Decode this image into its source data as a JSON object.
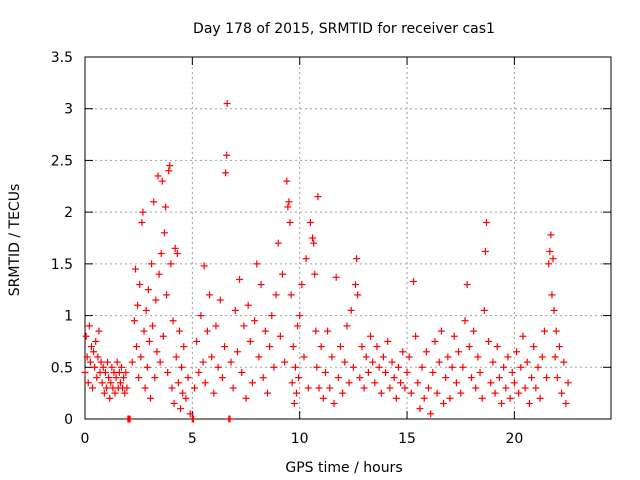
{
  "chart_data": {
    "type": "scatter",
    "title": "Day 178 of 2015, SRMTID for receiver cas1",
    "xlabel": "GPS time / hours",
    "ylabel": "SRMTID / TECUs",
    "xlim": [
      0,
      24.5
    ],
    "ylim": [
      0,
      3.5
    ],
    "grid": true,
    "legend": "none",
    "marker": "+",
    "marker_color": "#ff0000",
    "x_ticks": [
      {
        "value": 0,
        "label": "0"
      },
      {
        "value": 5,
        "label": "5"
      },
      {
        "value": 10,
        "label": "10"
      },
      {
        "value": 15,
        "label": "15"
      },
      {
        "value": 20,
        "label": "20"
      }
    ],
    "y_ticks": [
      {
        "value": 0,
        "label": "0"
      },
      {
        "value": 0.5,
        "label": "0.5"
      },
      {
        "value": 1,
        "label": "1"
      },
      {
        "value": 1.5,
        "label": "1.5"
      },
      {
        "value": 2,
        "label": "2"
      },
      {
        "value": 2.5,
        "label": "2.5"
      },
      {
        "value": 3,
        "label": "3"
      },
      {
        "value": 3.5,
        "label": "3.5"
      }
    ],
    "series": [
      {
        "name": "SRMTID",
        "points": [
          [
            0.0,
            0.45
          ],
          [
            0.05,
            0.8
          ],
          [
            0.1,
            0.6
          ],
          [
            0.15,
            0.35
          ],
          [
            0.2,
            0.9
          ],
          [
            0.25,
            0.55
          ],
          [
            0.3,
            0.7
          ],
          [
            0.35,
            0.3
          ],
          [
            0.4,
            0.65
          ],
          [
            0.45,
            0.5
          ],
          [
            0.5,
            0.75
          ],
          [
            0.55,
            0.4
          ],
          [
            0.6,
            0.6
          ],
          [
            0.65,
            0.85
          ],
          [
            0.7,
            0.45
          ],
          [
            0.75,
            0.55
          ],
          [
            0.8,
            0.35
          ],
          [
            0.85,
            0.5
          ],
          [
            0.9,
            0.25
          ],
          [
            0.95,
            0.45
          ],
          [
            1.0,
            0.3
          ],
          [
            1.05,
            0.55
          ],
          [
            1.1,
            0.4
          ],
          [
            1.15,
            0.2
          ],
          [
            1.2,
            0.35
          ],
          [
            1.25,
            0.5
          ],
          [
            1.3,
            0.3
          ],
          [
            1.35,
            0.45
          ],
          [
            1.4,
            0.25
          ],
          [
            1.45,
            0.4
          ],
          [
            1.5,
            0.55
          ],
          [
            1.55,
            0.3
          ],
          [
            1.6,
            0.45
          ],
          [
            1.65,
            0.35
          ],
          [
            1.7,
            0.5
          ],
          [
            1.75,
            0.3
          ],
          [
            1.8,
            0.4
          ],
          [
            1.85,
            0.25
          ],
          [
            1.9,
            0.45
          ],
          [
            1.95,
            0.3
          ],
          [
            2.0,
            0.0
          ],
          [
            2.05,
            0.0
          ],
          [
            2.1,
            0.0
          ],
          [
            2.2,
            0.55
          ],
          [
            2.3,
            0.95
          ],
          [
            2.35,
            1.45
          ],
          [
            2.4,
            0.7
          ],
          [
            2.45,
            1.1
          ],
          [
            2.5,
            0.4
          ],
          [
            2.55,
            1.3
          ],
          [
            2.6,
            0.6
          ],
          [
            2.65,
            1.9
          ],
          [
            2.7,
            2.0
          ],
          [
            2.75,
            0.85
          ],
          [
            2.8,
            0.3
          ],
          [
            2.85,
            1.05
          ],
          [
            2.9,
            0.5
          ],
          [
            2.95,
            1.25
          ],
          [
            3.0,
            0.75
          ],
          [
            3.05,
            0.2
          ],
          [
            3.1,
            1.5
          ],
          [
            3.15,
            0.9
          ],
          [
            3.2,
            2.1
          ],
          [
            3.25,
            0.4
          ],
          [
            3.3,
            1.15
          ],
          [
            3.35,
            0.65
          ],
          [
            3.4,
            2.35
          ],
          [
            3.45,
            1.4
          ],
          [
            3.5,
            0.55
          ],
          [
            3.55,
            1.6
          ],
          [
            3.6,
            2.3
          ],
          [
            3.65,
            0.8
          ],
          [
            3.7,
            1.8
          ],
          [
            3.75,
            2.05
          ],
          [
            3.8,
            1.2
          ],
          [
            3.85,
            0.45
          ],
          [
            3.9,
            2.4
          ],
          [
            3.95,
            2.45
          ],
          [
            4.0,
            1.5
          ],
          [
            4.05,
            0.3
          ],
          [
            4.1,
            0.95
          ],
          [
            4.15,
            0.15
          ],
          [
            4.2,
            1.65
          ],
          [
            4.25,
            0.6
          ],
          [
            4.3,
            1.6
          ],
          [
            4.35,
            0.35
          ],
          [
            4.4,
            0.85
          ],
          [
            4.45,
            0.1
          ],
          [
            4.5,
            0.5
          ],
          [
            4.55,
            0.25
          ],
          [
            4.6,
            0.7
          ],
          [
            4.7,
            0.2
          ],
          [
            4.8,
            0.4
          ],
          [
            4.9,
            0.05
          ],
          [
            5.0,
            0.0
          ],
          [
            5.05,
            0.0
          ],
          [
            5.1,
            0.3
          ],
          [
            5.2,
            0.75
          ],
          [
            5.3,
            0.45
          ],
          [
            5.4,
            1.0
          ],
          [
            5.5,
            0.55
          ],
          [
            5.55,
            1.48
          ],
          [
            5.6,
            0.35
          ],
          [
            5.7,
            0.85
          ],
          [
            5.8,
            1.2
          ],
          [
            5.9,
            0.6
          ],
          [
            6.0,
            0.25
          ],
          [
            6.1,
            0.9
          ],
          [
            6.2,
            0.5
          ],
          [
            6.3,
            1.15
          ],
          [
            6.4,
            0.4
          ],
          [
            6.5,
            0.7
          ],
          [
            6.55,
            2.38
          ],
          [
            6.6,
            2.55
          ],
          [
            6.62,
            3.05
          ],
          [
            6.7,
            0.0
          ],
          [
            6.75,
            0.0
          ],
          [
            6.8,
            0.55
          ],
          [
            6.9,
            0.3
          ],
          [
            7.0,
            1.05
          ],
          [
            7.1,
            0.65
          ],
          [
            7.2,
            1.35
          ],
          [
            7.3,
            0.45
          ],
          [
            7.4,
            0.9
          ],
          [
            7.5,
            0.2
          ],
          [
            7.6,
            1.1
          ],
          [
            7.7,
            0.75
          ],
          [
            7.8,
            0.35
          ],
          [
            7.9,
            0.95
          ],
          [
            8.0,
            1.5
          ],
          [
            8.1,
            0.6
          ],
          [
            8.2,
            1.3
          ],
          [
            8.3,
            0.4
          ],
          [
            8.4,
            0.85
          ],
          [
            8.5,
            0.25
          ],
          [
            8.6,
            0.7
          ],
          [
            8.7,
            1.0
          ],
          [
            8.8,
            0.5
          ],
          [
            8.9,
            1.2
          ],
          [
            9.0,
            1.7
          ],
          [
            9.1,
            0.8
          ],
          [
            9.2,
            1.4
          ],
          [
            9.3,
            0.55
          ],
          [
            9.4,
            2.3
          ],
          [
            9.45,
            2.05
          ],
          [
            9.5,
            2.1
          ],
          [
            9.55,
            1.9
          ],
          [
            9.6,
            1.2
          ],
          [
            9.65,
            0.35
          ],
          [
            9.7,
            0.7
          ],
          [
            9.75,
            0.15
          ],
          [
            9.8,
            0.5
          ],
          [
            9.85,
            0.25
          ],
          [
            9.9,
            0.9
          ],
          [
            9.95,
            0.4
          ],
          [
            10.0,
            1.0
          ],
          [
            10.1,
            1.3
          ],
          [
            10.2,
            0.6
          ],
          [
            10.3,
            1.55
          ],
          [
            10.4,
            0.3
          ],
          [
            10.5,
            1.9
          ],
          [
            10.6,
            1.75
          ],
          [
            10.65,
            1.7
          ],
          [
            10.7,
            1.4
          ],
          [
            10.75,
            0.85
          ],
          [
            10.8,
            0.5
          ],
          [
            10.85,
            2.15
          ],
          [
            10.9,
            0.3
          ],
          [
            11.0,
            0.7
          ],
          [
            11.1,
            0.2
          ],
          [
            11.2,
            0.45
          ],
          [
            11.3,
            0.85
          ],
          [
            11.4,
            0.3
          ],
          [
            11.5,
            0.6
          ],
          [
            11.6,
            0.15
          ],
          [
            11.7,
            1.37
          ],
          [
            11.8,
            0.4
          ],
          [
            11.9,
            0.7
          ],
          [
            12.0,
            0.25
          ],
          [
            12.1,
            0.55
          ],
          [
            12.2,
            0.9
          ],
          [
            12.3,
            0.35
          ],
          [
            12.4,
            1.05
          ],
          [
            12.5,
            0.5
          ],
          [
            12.6,
            1.3
          ],
          [
            12.65,
            1.55
          ],
          [
            12.7,
            1.2
          ],
          [
            12.8,
            0.4
          ],
          [
            12.9,
            0.7
          ],
          [
            13.0,
            0.3
          ],
          [
            13.1,
            0.6
          ],
          [
            13.2,
            0.45
          ],
          [
            13.3,
            0.8
          ],
          [
            13.4,
            0.55
          ],
          [
            13.5,
            0.35
          ],
          [
            13.6,
            0.7
          ],
          [
            13.7,
            0.5
          ],
          [
            13.8,
            0.25
          ],
          [
            13.9,
            0.6
          ],
          [
            14.0,
            0.45
          ],
          [
            14.1,
            0.75
          ],
          [
            14.2,
            0.3
          ],
          [
            14.3,
            0.55
          ],
          [
            14.4,
            0.4
          ],
          [
            14.5,
            0.2
          ],
          [
            14.6,
            0.5
          ],
          [
            14.7,
            0.35
          ],
          [
            14.8,
            0.65
          ],
          [
            14.9,
            0.3
          ],
          [
            15.0,
            0.45
          ],
          [
            15.1,
            0.6
          ],
          [
            15.2,
            0.25
          ],
          [
            15.3,
            1.33
          ],
          [
            15.4,
            0.8
          ],
          [
            15.5,
            0.35
          ],
          [
            15.6,
            0.1
          ],
          [
            15.7,
            0.5
          ],
          [
            15.8,
            0.2
          ],
          [
            15.9,
            0.65
          ],
          [
            16.0,
            0.3
          ],
          [
            16.1,
            0.05
          ],
          [
            16.2,
            0.45
          ],
          [
            16.3,
            0.75
          ],
          [
            16.4,
            0.25
          ],
          [
            16.5,
            0.55
          ],
          [
            16.6,
            0.85
          ],
          [
            16.7,
            0.15
          ],
          [
            16.8,
            0.4
          ],
          [
            16.9,
            0.6
          ],
          [
            17.0,
            0.2
          ],
          [
            17.1,
            0.5
          ],
          [
            17.2,
            0.8
          ],
          [
            17.3,
            0.35
          ],
          [
            17.4,
            0.65
          ],
          [
            17.5,
            0.25
          ],
          [
            17.6,
            0.5
          ],
          [
            17.7,
            0.95
          ],
          [
            17.8,
            1.3
          ],
          [
            17.9,
            0.7
          ],
          [
            18.0,
            0.4
          ],
          [
            18.1,
            0.85
          ],
          [
            18.2,
            0.3
          ],
          [
            18.3,
            0.6
          ],
          [
            18.4,
            0.45
          ],
          [
            18.5,
            0.2
          ],
          [
            18.6,
            1.05
          ],
          [
            18.65,
            1.62
          ],
          [
            18.7,
            1.9
          ],
          [
            18.8,
            0.75
          ],
          [
            18.9,
            0.35
          ],
          [
            19.0,
            0.55
          ],
          [
            19.1,
            0.25
          ],
          [
            19.2,
            0.7
          ],
          [
            19.3,
            0.4
          ],
          [
            19.4,
            0.15
          ],
          [
            19.5,
            0.5
          ],
          [
            19.6,
            0.3
          ],
          [
            19.7,
            0.6
          ],
          [
            19.8,
            0.2
          ],
          [
            19.9,
            0.45
          ],
          [
            20.0,
            0.35
          ],
          [
            20.1,
            0.65
          ],
          [
            20.2,
            0.25
          ],
          [
            20.3,
            0.5
          ],
          [
            20.4,
            0.8
          ],
          [
            20.5,
            0.3
          ],
          [
            20.6,
            0.55
          ],
          [
            20.7,
            0.15
          ],
          [
            20.8,
            0.4
          ],
          [
            20.9,
            0.7
          ],
          [
            21.0,
            0.3
          ],
          [
            21.1,
            0.5
          ],
          [
            21.2,
            0.2
          ],
          [
            21.3,
            0.6
          ],
          [
            21.4,
            0.85
          ],
          [
            21.5,
            0.4
          ],
          [
            21.6,
            1.5
          ],
          [
            21.65,
            1.62
          ],
          [
            21.7,
            1.78
          ],
          [
            21.75,
            1.2
          ],
          [
            21.8,
            1.55
          ],
          [
            21.85,
            1.05
          ],
          [
            21.9,
            0.6
          ],
          [
            21.95,
            0.85
          ],
          [
            22.0,
            0.4
          ],
          [
            22.1,
            0.7
          ],
          [
            22.2,
            0.25
          ],
          [
            22.3,
            0.55
          ],
          [
            22.4,
            0.15
          ],
          [
            22.5,
            0.35
          ]
        ]
      }
    ]
  }
}
